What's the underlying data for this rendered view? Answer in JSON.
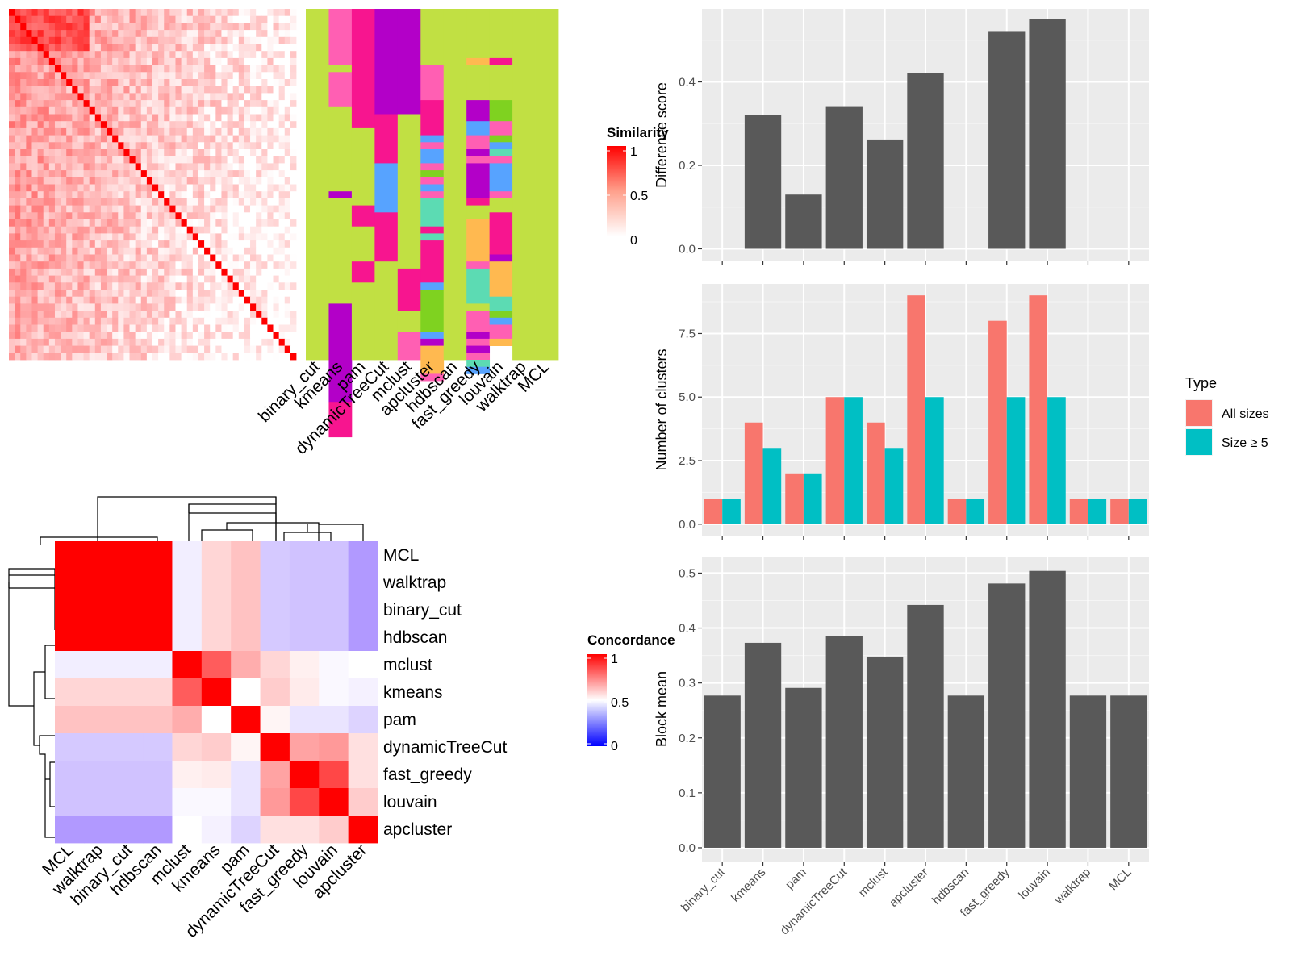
{
  "methods": [
    "binary_cut",
    "kmeans",
    "pam",
    "dynamicTreeCut",
    "mclust",
    "apcluster",
    "hdbscan",
    "fast_greedy",
    "louvain",
    "walktrap",
    "MCL"
  ],
  "palette": {
    "green": "#c1e043",
    "pink": "#ff5fb3",
    "magenta": "#f7158f",
    "purple": "#b300c8",
    "blue": "#57a3ff",
    "orange": "#ffb950",
    "teal": "#5cdbb3",
    "lime": "#7fd220",
    "sim_high": "#ff0000",
    "conc_low": "#0000ff",
    "bar_gray": "#595959",
    "panel_bg": "#ebebeb",
    "series_all": "#f8766d",
    "series_size5": "#00bfc4"
  },
  "labels": {
    "sim_legend_title": "Similarity",
    "conc_legend_title": "Concordance",
    "legend_title": "Type",
    "legend_all": "All sizes",
    "legend_size5": "Size ≥ 5"
  },
  "sim_legend_ticks": [
    "1",
    "0.5",
    "0"
  ],
  "conc_legend_ticks": [
    "1",
    "0.5",
    "0"
  ],
  "membership": {
    "row_count": 50,
    "columns": [
      [
        [
          "green",
          50
        ]
      ],
      [
        [
          "pink",
          8
        ],
        [
          "green",
          1
        ],
        [
          "pink",
          5
        ],
        [
          "green",
          12
        ],
        [
          "purple",
          1
        ],
        [
          "green",
          15
        ],
        [
          "purple",
          14
        ],
        [
          "magenta",
          5
        ]
      ],
      [
        [
          "magenta",
          17
        ],
        [
          "green",
          11
        ],
        [
          "magenta",
          3
        ],
        [
          "green",
          5
        ],
        [
          "magenta",
          3
        ],
        [
          "green",
          11
        ]
      ],
      [
        [
          "purple",
          15
        ],
        [
          "magenta",
          7
        ],
        [
          "blue",
          7
        ],
        [
          "magenta",
          7
        ],
        [
          "green",
          14
        ]
      ],
      [
        [
          "purple",
          15
        ],
        [
          "green",
          22
        ],
        [
          "magenta",
          6
        ],
        [
          "green",
          3
        ],
        [
          "pink",
          4
        ]
      ],
      [
        [
          "green",
          8
        ],
        [
          "pink",
          5
        ],
        [
          "magenta",
          5
        ],
        [
          "blue",
          1
        ],
        [
          "pink",
          1
        ],
        [
          "blue",
          2
        ],
        [
          "pink",
          1
        ],
        [
          "lime",
          1
        ],
        [
          "pink",
          1
        ],
        [
          "blue",
          1
        ],
        [
          "pink",
          1
        ],
        [
          "teal",
          4
        ],
        [
          "magenta",
          1
        ],
        [
          "teal",
          1
        ],
        [
          "magenta",
          6
        ],
        [
          "blue",
          1
        ],
        [
          "lime",
          6
        ],
        [
          "blue",
          1
        ],
        [
          "purple",
          1
        ],
        [
          "orange",
          4
        ],
        [
          "pink",
          1
        ]
      ],
      [
        [
          "green",
          50
        ]
      ],
      [
        [
          "green",
          7
        ],
        [
          "orange",
          1
        ],
        [
          "green",
          5
        ],
        [
          "purple",
          3
        ],
        [
          "blue",
          2
        ],
        [
          "pink",
          2
        ],
        [
          "purple",
          1
        ],
        [
          "pink",
          1
        ],
        [
          "purple",
          5
        ],
        [
          "magenta",
          1
        ],
        [
          "green",
          2
        ],
        [
          "orange",
          6
        ],
        [
          "pink",
          1
        ],
        [
          "teal",
          5
        ],
        [
          "green",
          1
        ],
        [
          "pink",
          3
        ],
        [
          "purple",
          1
        ],
        [
          "pink",
          1
        ],
        [
          "purple",
          1
        ],
        [
          "pink",
          1
        ],
        [
          "teal",
          1
        ],
        [
          "blue",
          1
        ]
      ],
      [
        [
          "green",
          7
        ],
        [
          "magenta",
          1
        ],
        [
          "green",
          5
        ],
        [
          "lime",
          3
        ],
        [
          "pink",
          2
        ],
        [
          "lime",
          1
        ],
        [
          "blue",
          1
        ],
        [
          "teal",
          1
        ],
        [
          "pink",
          1
        ],
        [
          "blue",
          4
        ],
        [
          "pink",
          1
        ],
        [
          "green",
          2
        ],
        [
          "magenta",
          6
        ],
        [
          "purple",
          1
        ],
        [
          "orange",
          5
        ],
        [
          "teal",
          2
        ],
        [
          "lime",
          1
        ],
        [
          "blue",
          1
        ],
        [
          "pink",
          2
        ],
        [
          "orange",
          1
        ]
      ],
      [
        [
          "green",
          50
        ]
      ],
      [
        [
          "green",
          50
        ]
      ]
    ]
  },
  "concordance": {
    "order": [
      "MCL",
      "walktrap",
      "binary_cut",
      "hdbscan",
      "mclust",
      "kmeans",
      "pam",
      "dynamicTreeCut",
      "fast_greedy",
      "louvain",
      "apcluster"
    ],
    "matrix": [
      [
        1,
        1,
        1,
        1,
        0.45,
        0.58,
        0.62,
        0.34,
        0.32,
        0.32,
        0.2
      ],
      [
        1,
        1,
        1,
        1,
        0.45,
        0.58,
        0.62,
        0.34,
        0.32,
        0.32,
        0.2
      ],
      [
        1,
        1,
        1,
        1,
        0.45,
        0.58,
        0.62,
        0.34,
        0.32,
        0.32,
        0.2
      ],
      [
        1,
        1,
        1,
        1,
        0.45,
        0.58,
        0.62,
        0.34,
        0.32,
        0.32,
        0.2
      ],
      [
        0.45,
        0.45,
        0.45,
        0.45,
        1,
        0.82,
        0.66,
        0.58,
        0.53,
        0.48,
        0.5
      ],
      [
        0.58,
        0.58,
        0.58,
        0.58,
        0.82,
        1,
        0.5,
        0.6,
        0.54,
        0.48,
        0.46
      ],
      [
        0.62,
        0.62,
        0.62,
        0.62,
        0.66,
        0.5,
        1,
        0.52,
        0.42,
        0.42,
        0.37
      ],
      [
        0.34,
        0.34,
        0.34,
        0.34,
        0.58,
        0.6,
        0.52,
        1,
        0.68,
        0.7,
        0.56
      ],
      [
        0.32,
        0.32,
        0.32,
        0.32,
        0.53,
        0.54,
        0.42,
        0.68,
        1,
        0.86,
        0.56
      ],
      [
        0.32,
        0.32,
        0.32,
        0.32,
        0.48,
        0.48,
        0.42,
        0.7,
        0.86,
        1,
        0.6
      ],
      [
        0.2,
        0.2,
        0.2,
        0.2,
        0.5,
        0.46,
        0.37,
        0.56,
        0.56,
        0.6,
        1
      ]
    ]
  },
  "chart_data": [
    {
      "type": "bar",
      "categories": [
        "binary_cut",
        "kmeans",
        "pam",
        "dynamicTreeCut",
        "mclust",
        "apcluster",
        "hdbscan",
        "fast_greedy",
        "louvain",
        "walktrap",
        "MCL"
      ],
      "values": [
        0,
        0.32,
        0.13,
        0.34,
        0.262,
        0.422,
        0,
        0.52,
        0.55,
        0,
        0
      ],
      "ylabel": "Difference score",
      "ylim": [
        -0.03,
        0.575
      ],
      "yticks": [
        "0.0",
        "0.2",
        "0.4"
      ],
      "ytick_values": [
        0,
        0.2,
        0.4
      ],
      "grid": true
    },
    {
      "type": "bar",
      "categories": [
        "binary_cut",
        "kmeans",
        "pam",
        "dynamicTreeCut",
        "mclust",
        "apcluster",
        "hdbscan",
        "fast_greedy",
        "louvain",
        "walktrap",
        "MCL"
      ],
      "series": [
        {
          "name": "All sizes",
          "values": [
            1,
            4,
            2,
            5,
            4,
            9,
            1,
            8,
            9,
            1,
            1
          ]
        },
        {
          "name": "Size ≥ 5",
          "values": [
            1,
            3,
            2,
            5,
            3,
            5,
            1,
            5,
            5,
            1,
            1
          ]
        }
      ],
      "ylabel": "Number of clusters",
      "ylim": [
        -0.45,
        9.45
      ],
      "yticks": [
        "0.0",
        "2.5",
        "5.0",
        "7.5"
      ],
      "ytick_values": [
        0,
        2.5,
        5,
        7.5
      ],
      "legend": "right",
      "grid": true
    },
    {
      "type": "bar",
      "categories": [
        "binary_cut",
        "kmeans",
        "pam",
        "dynamicTreeCut",
        "mclust",
        "apcluster",
        "hdbscan",
        "fast_greedy",
        "louvain",
        "walktrap",
        "MCL"
      ],
      "values": [
        0.277,
        0.373,
        0.291,
        0.385,
        0.348,
        0.442,
        0.277,
        0.481,
        0.504,
        0.277,
        0.277
      ],
      "ylabel": "Block mean",
      "ylim": [
        -0.025,
        0.53
      ],
      "yticks": [
        "0.0",
        "0.1",
        "0.2",
        "0.3",
        "0.4",
        "0.5"
      ],
      "ytick_values": [
        0,
        0.1,
        0.2,
        0.3,
        0.4,
        0.5
      ],
      "grid": true
    }
  ]
}
